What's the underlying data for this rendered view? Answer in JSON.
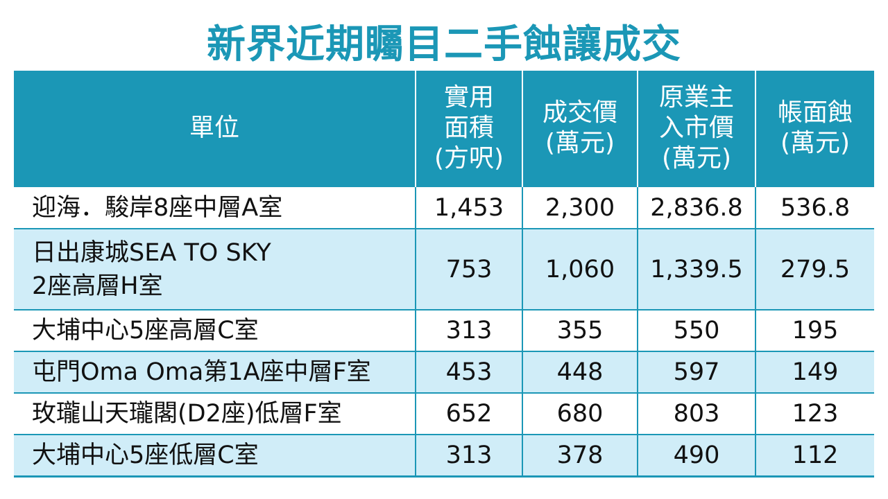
{
  "title": "新界近期矚目二手蝕讓成交",
  "headers": {
    "unit": [
      "單位"
    ],
    "area": [
      "實用",
      "面積",
      "(方呎)"
    ],
    "price": [
      "成交價",
      "(萬元)"
    ],
    "original": [
      "原業主",
      "入市價",
      "(萬元)"
    ],
    "loss": [
      "帳面蝕",
      "(萬元)"
    ]
  },
  "rows": [
    {
      "unit": [
        "迎海．駿岸8座中層A室"
      ],
      "area": "1,453",
      "price": "2,300",
      "original": "2,836.8",
      "loss": "536.8"
    },
    {
      "unit": [
        "日出康城SEA TO SKY",
        "2座高層H室"
      ],
      "area": "753",
      "price": "1,060",
      "original": "1,339.5",
      "loss": "279.5"
    },
    {
      "unit": [
        "大埔中心5座高層C室"
      ],
      "area": "313",
      "price": "355",
      "original": "550",
      "loss": "195"
    },
    {
      "unit": [
        "屯門Oma Oma第1A座中層F室"
      ],
      "area": "453",
      "price": "448",
      "original": "597",
      "loss": "149"
    },
    {
      "unit": [
        "玫瓏山天瓏閣(D2座)低層F室"
      ],
      "area": "652",
      "price": "680",
      "original": "803",
      "loss": "123"
    },
    {
      "unit": [
        "大埔中心5座低層C室"
      ],
      "area": "313",
      "price": "378",
      "original": "490",
      "loss": "112"
    }
  ],
  "colors": {
    "accent": "#1b97b6",
    "row_alt": "#d0edf8",
    "text": "#111111"
  }
}
